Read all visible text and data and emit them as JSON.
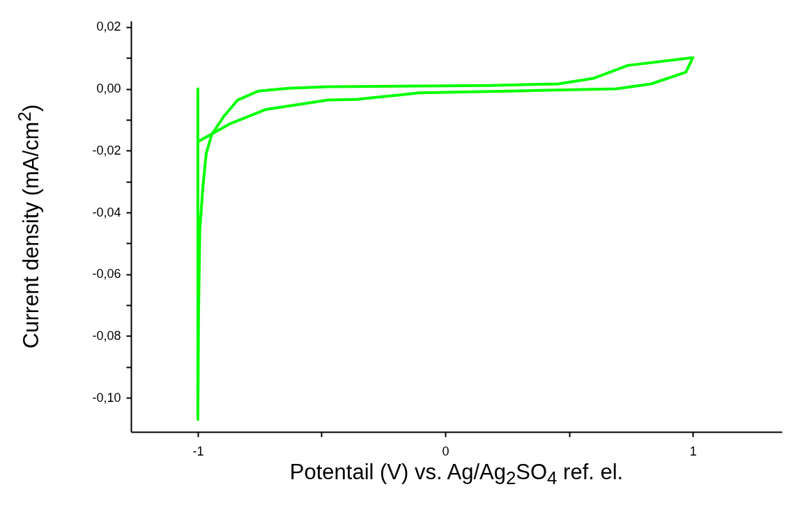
{
  "chart_data": {
    "type": "line",
    "xlabel": "Potentail (V) vs. Ag/Ag$_{2}$SO$_{4}$ ref. el.",
    "ylabel": "Current density (mA/cm$^{2}$)",
    "series": [
      {
        "color": "#00ff00",
        "x": [
          -1,
          -1,
          -0.997,
          -0.992,
          -0.98,
          -0.966,
          -0.944,
          -0.896,
          -0.839,
          -0.755,
          -0.634,
          -0.473,
          -0.107,
          0.175,
          0.456,
          0.597,
          0.738,
          1.0,
          0.972,
          0.831,
          0.69,
          0.268,
          -0.107,
          -0.163,
          -0.361,
          -0.473,
          -0.727,
          -0.868,
          -1.0
        ],
        "values": [
          0,
          -0.107,
          -0.0726,
          -0.0456,
          -0.0321,
          -0.0209,
          -0.0148,
          -0.009,
          -0.0036,
          -0.0007,
          0.0002,
          0.0007,
          0.0009,
          0.0011,
          0.0016,
          0.0034,
          0.0076,
          0.0101,
          0.0054,
          0.0016,
          0,
          -0.0007,
          -0.0013,
          -0.0018,
          -0.0034,
          -0.0036,
          -0.0067,
          -0.0112,
          -0.0171
        ]
      }
    ],
    "xlim": [
      -1.27,
      1.36
    ],
    "xticks": [
      -1,
      {
        "value": -0.5,
        "label": null
      },
      0,
      {
        "value": 0.5,
        "label": null
      },
      1
    ],
    "ylim": [
      -0.111,
      0.022
    ],
    "yticks": [
      {
        "value": -0.1,
        "label": "-0,10"
      },
      {
        "value": -0.09,
        "label": null
      },
      {
        "value": -0.08,
        "label": "-0,08"
      },
      {
        "value": -0.07,
        "label": null
      },
      {
        "value": -0.06,
        "label": "-0,06"
      },
      {
        "value": -0.05,
        "label": null
      },
      {
        "value": -0.04,
        "label": "-0,04"
      },
      {
        "value": -0.03,
        "label": null
      },
      {
        "value": -0.02,
        "label": "-0,02"
      },
      {
        "value": -0.01,
        "label": null
      },
      {
        "value": 0,
        "label": "0,00"
      },
      {
        "value": 0.01,
        "label": null
      },
      {
        "value": 0.02,
        "label": "0,02"
      }
    ],
    "grid": false,
    "line_style": "solid"
  }
}
